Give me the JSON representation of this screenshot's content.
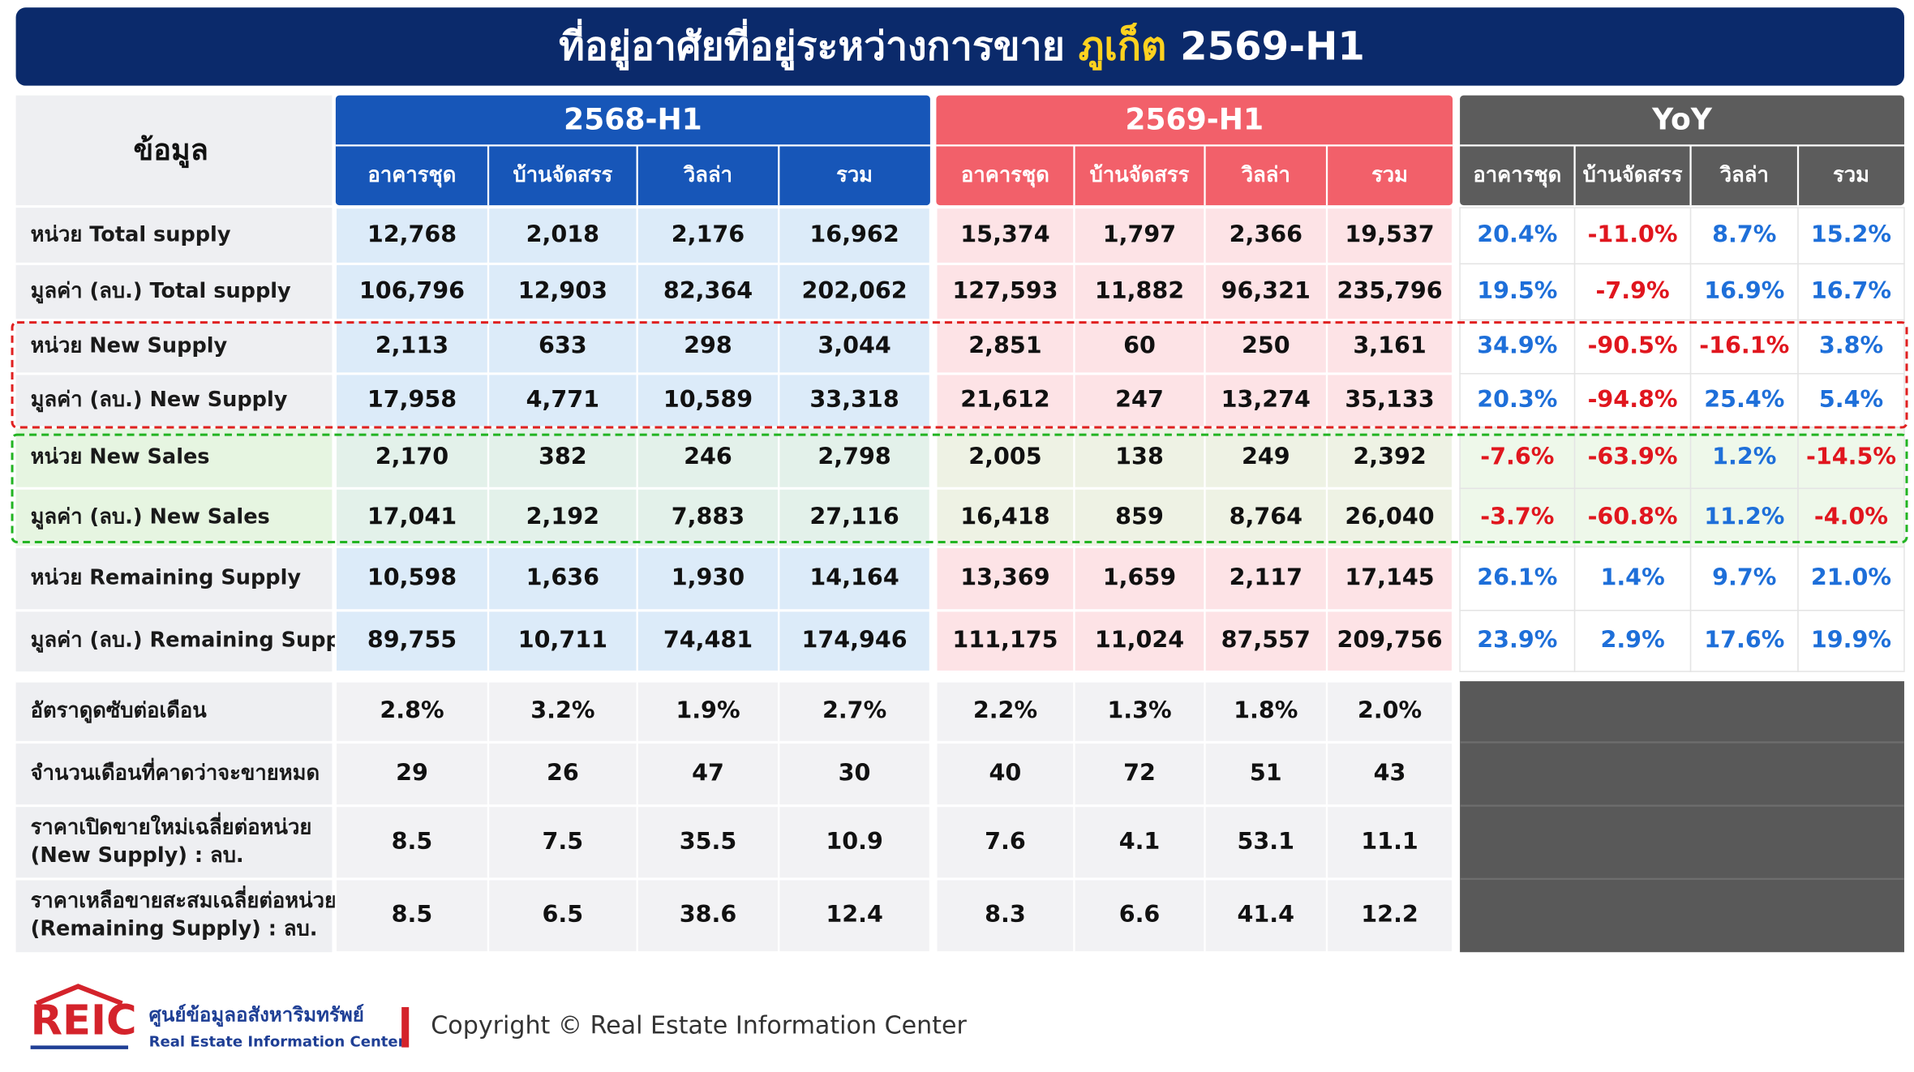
{
  "title": {
    "main": "ที่อยู่อาศัยที่อยู่ระหว่างการขาย",
    "highlight": "ภูเก็ต",
    "suffix": "2569-H1"
  },
  "header": {
    "row_header": "ข้อมูล",
    "groups": [
      {
        "name": "2568-H1",
        "columns": [
          "อาคารชุด",
          "บ้านจัดสรร",
          "วิลล่า",
          "รวม"
        ]
      },
      {
        "name": "2569-H1",
        "columns": [
          "อาคารชุด",
          "บ้านจัดสรร",
          "วิลล่า",
          "รวม"
        ]
      },
      {
        "name": "YoY",
        "columns": [
          "อาคารชุด",
          "บ้านจัดสรร",
          "วิลล่า",
          "รวม"
        ]
      }
    ]
  },
  "rows": [
    {
      "label": [
        "หน่วย Total supply"
      ],
      "values": [
        "12,768",
        "2,018",
        "2,176",
        "16,962",
        "15,374",
        "1,797",
        "2,366",
        "19,537"
      ],
      "yoy": [
        "20.4%",
        "-11.0%",
        "8.7%",
        "15.2%"
      ]
    },
    {
      "label": [
        "มูลค่า (ลบ.) Total supply"
      ],
      "values": [
        "106,796",
        "12,903",
        "82,364",
        "202,062",
        "127,593",
        "11,882",
        "96,321",
        "235,796"
      ],
      "yoy": [
        "19.5%",
        "-7.9%",
        "16.9%",
        "16.7%"
      ]
    },
    {
      "label": [
        "หน่วย New Supply"
      ],
      "values": [
        "2,113",
        "633",
        "298",
        "3,044",
        "2,851",
        "60",
        "250",
        "3,161"
      ],
      "yoy": [
        "34.9%",
        "-90.5%",
        "-16.1%",
        "3.8%"
      ]
    },
    {
      "label": [
        "มูลค่า (ลบ.) New Supply"
      ],
      "values": [
        "17,958",
        "4,771",
        "10,589",
        "33,318",
        "21,612",
        "247",
        "13,274",
        "35,133"
      ],
      "yoy": [
        "20.3%",
        "-94.8%",
        "25.4%",
        "5.4%"
      ]
    },
    {
      "label": [
        "หน่วย New Sales"
      ],
      "values": [
        "2,170",
        "382",
        "246",
        "2,798",
        "2,005",
        "138",
        "249",
        "2,392"
      ],
      "yoy": [
        "-7.6%",
        "-63.9%",
        "1.2%",
        "-14.5%"
      ]
    },
    {
      "label": [
        "มูลค่า (ลบ.) New Sales"
      ],
      "values": [
        "17,041",
        "2,192",
        "7,883",
        "27,116",
        "16,418",
        "859",
        "8,764",
        "26,040"
      ],
      "yoy": [
        "-3.7%",
        "-60.8%",
        "11.2%",
        "-4.0%"
      ]
    },
    {
      "label": [
        "หน่วย Remaining Supply"
      ],
      "values": [
        "10,598",
        "1,636",
        "1,930",
        "14,164",
        "13,369",
        "1,659",
        "2,117",
        "17,145"
      ],
      "yoy": [
        "26.1%",
        "1.4%",
        "9.7%",
        "21.0%"
      ]
    },
    {
      "label": [
        "มูลค่า (ลบ.) Remaining Supply"
      ],
      "values": [
        "89,755",
        "10,711",
        "74,481",
        "174,946",
        "111,175",
        "11,024",
        "87,557",
        "209,756"
      ],
      "yoy": [
        "23.9%",
        "2.9%",
        "17.6%",
        "19.9%"
      ]
    },
    {
      "label": [
        "อัตราดูดซับต่อเดือน"
      ],
      "values": [
        "2.8%",
        "3.2%",
        "1.9%",
        "2.7%",
        "2.2%",
        "1.3%",
        "1.8%",
        "2.0%"
      ]
    },
    {
      "label": [
        "จำนวนเดือนที่คาดว่าจะขายหมด"
      ],
      "values": [
        "29",
        "26",
        "47",
        "30",
        "40",
        "72",
        "51",
        "43"
      ]
    },
    {
      "label": [
        "ราคาเปิดขายใหม่เฉลี่ยต่อหน่วย",
        "(New Supply) : ลบ."
      ],
      "values": [
        "8.5",
        "7.5",
        "35.5",
        "10.9",
        "7.6",
        "4.1",
        "53.1",
        "11.1"
      ]
    },
    {
      "label": [
        "ราคาเหลือขายสะสมเฉลี่ยต่อหน่วย",
        "(Remaining Supply) : ลบ."
      ],
      "values": [
        "8.5",
        "6.5",
        "38.6",
        "12.4",
        "8.3",
        "6.6",
        "41.4",
        "12.2"
      ]
    }
  ],
  "footer": {
    "logo": "REIC",
    "org_th": "ศูนย์ข้อมูลอสังหาริมทรัพย์",
    "org_en": "Real Estate Information Center",
    "copyright": "Copyright © Real Estate Information Center"
  }
}
